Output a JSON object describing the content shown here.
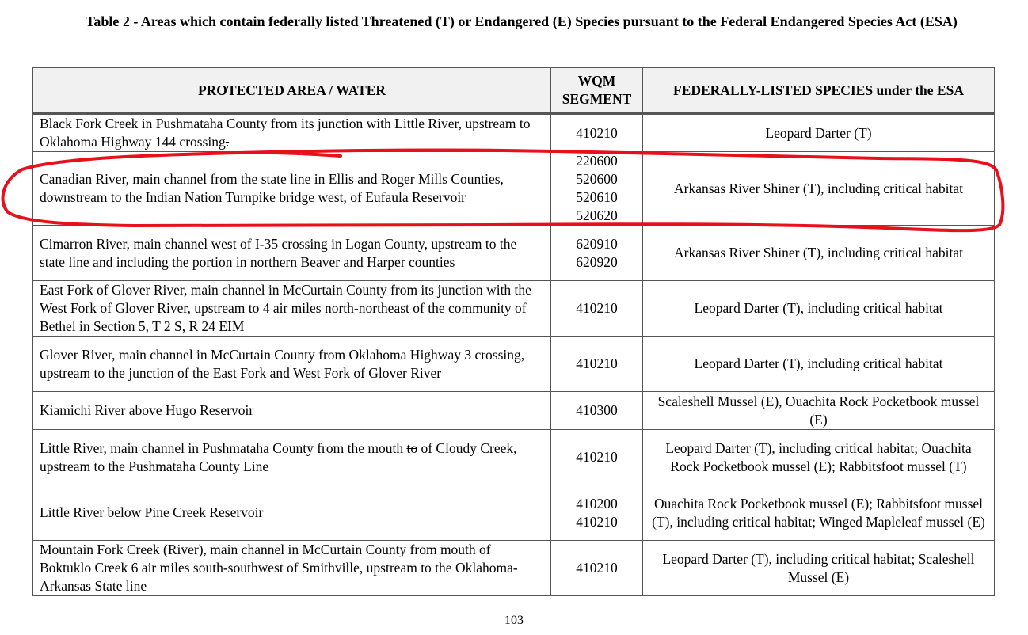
{
  "title": "Table 2 - Areas which contain federally listed Threatened (T) or Endangered (E) Species pursuant to the Federal Endangered Species Act (ESA)",
  "headers": {
    "area": "PROTECTED AREA / WATER",
    "segment_line1": "WQM",
    "segment_line2": "SEGMENT",
    "species": "FEDERALLY-LISTED SPECIES under the ESA"
  },
  "rows": [
    {
      "area": "Black Fork Creek in Pushmataha County from its junction with Little River, upstream to Oklahoma Highway 144 crossing",
      "area_struck": ".",
      "segments": [
        "410210"
      ],
      "species": "Leopard Darter (T)"
    },
    {
      "area": "Canadian River, main channel from the state line in Ellis and Roger Mills Counties, downstream to the Indian Nation Turnpike bridge west, of Eufaula Reservoir",
      "segments": [
        "220600",
        "520600",
        "520610",
        "520620"
      ],
      "species": "Arkansas River Shiner (T), including critical habitat"
    },
    {
      "area": "Cimarron River, main channel west of I-35 crossing in Logan County, upstream to the state line and including the portion in northern Beaver and Harper counties",
      "segments": [
        "620910",
        "620920"
      ],
      "species": "Arkansas River Shiner (T), including critical habitat"
    },
    {
      "area": "East Fork of Glover River, main channel in McCurtain County from its junction with the West Fork of Glover River, upstream to 4 air miles north-northeast of the community of Bethel in Section 5, T 2 S, R 24 EIM",
      "segments": [
        "410210"
      ],
      "species": "Leopard Darter (T), including critical habitat"
    },
    {
      "area": "Glover River, main channel in McCurtain County from Oklahoma Highway  3 crossing, upstream to the junction of the East Fork and West Fork of Glover River",
      "segments": [
        "410210"
      ],
      "species": "Leopard Darter (T), including critical habitat"
    },
    {
      "area": "Kiamichi River above Hugo Reservoir",
      "segments": [
        "410300"
      ],
      "species": "Scaleshell Mussel (E), Ouachita Rock Pocketbook mussel (E)"
    },
    {
      "area_before": "Little River, main channel in Pushmataha County from the mouth ",
      "area_struck": "to",
      "area_after": " of Cloudy Creek, upstream to the Pushmataha County Line",
      "segments": [
        "410210"
      ],
      "species": "Leopard Darter (T), including critical habitat; Ouachita Rock Pocketbook mussel (E); Rabbitsfoot mussel (T)"
    },
    {
      "area": "Little River below Pine Creek Reservoir",
      "segments": [
        "410200",
        "410210"
      ],
      "species": "Ouachita Rock Pocketbook mussel (E); Rabbitsfoot mussel (T), including critical habitat; Winged Mapleleaf mussel (E)"
    },
    {
      "area": "Mountain Fork Creek (River), main channel in McCurtain County from mouth of Boktuklo Creek 6 air miles south-southwest of Smithville, upstream to the Oklahoma-Arkansas State line",
      "segments": [
        "410210"
      ],
      "species": "Leopard Darter (T), including critical habitat; Scaleshell Mussel (E)"
    }
  ],
  "page_number": "103",
  "annotation_color": "#e8101b"
}
